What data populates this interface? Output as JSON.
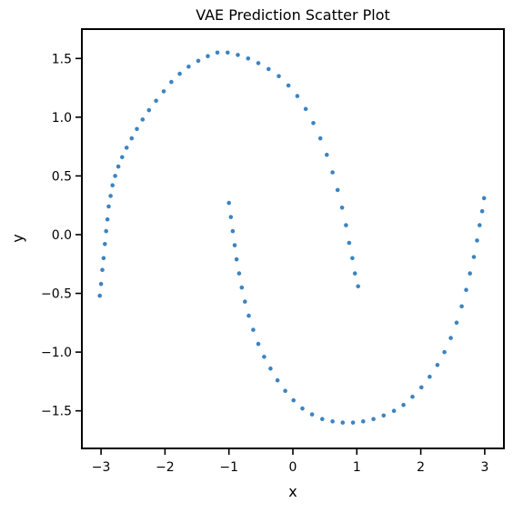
{
  "chart_data": {
    "type": "scatter",
    "title": "VAE Prediction Scatter Plot",
    "xlabel": "x",
    "ylabel": "y",
    "xlim": [
      -3.3,
      3.3
    ],
    "ylim": [
      -1.82,
      1.75
    ],
    "xticks": [
      -3,
      -2,
      -1,
      0,
      1,
      2,
      3
    ],
    "xtick_labels": [
      "−3",
      "−2",
      "−1",
      "0",
      "1",
      "2",
      "3"
    ],
    "yticks": [
      -1.5,
      -1.0,
      -0.5,
      0.0,
      0.5,
      1.0,
      1.5
    ],
    "ytick_labels": [
      "−1.5",
      "−1.0",
      "−0.5",
      "0.0",
      "0.5",
      "1.0",
      "1.5"
    ],
    "grid": false,
    "point_color": "#3b84c0",
    "point_edge_color": "#ffffff",
    "series": [
      {
        "values": [
          [
            -3.02,
            -0.52
          ],
          [
            -3.0,
            -0.42
          ],
          [
            -2.98,
            -0.3
          ],
          [
            -2.96,
            -0.2
          ],
          [
            -2.94,
            -0.08
          ],
          [
            -2.92,
            0.03
          ],
          [
            -2.9,
            0.13
          ],
          [
            -2.88,
            0.24
          ],
          [
            -2.85,
            0.33
          ],
          [
            -2.82,
            0.42
          ],
          [
            -2.78,
            0.5
          ],
          [
            -2.73,
            0.58
          ],
          [
            -2.67,
            0.66
          ],
          [
            -2.6,
            0.74
          ],
          [
            -2.52,
            0.82
          ],
          [
            -2.44,
            0.9
          ],
          [
            -2.35,
            0.98
          ],
          [
            -2.25,
            1.06
          ],
          [
            -2.14,
            1.14
          ],
          [
            -2.02,
            1.22
          ],
          [
            -1.9,
            1.3
          ],
          [
            -1.77,
            1.37
          ],
          [
            -1.63,
            1.43
          ],
          [
            -1.48,
            1.48
          ],
          [
            -1.33,
            1.52
          ],
          [
            -1.18,
            1.55
          ],
          [
            -1.02,
            1.55
          ],
          [
            -0.86,
            1.53
          ],
          [
            -0.7,
            1.5
          ],
          [
            -0.54,
            1.46
          ],
          [
            -0.38,
            1.41
          ],
          [
            -0.22,
            1.35
          ],
          [
            -0.07,
            1.27
          ],
          [
            0.07,
            1.18
          ],
          [
            0.2,
            1.07
          ],
          [
            0.32,
            0.95
          ],
          [
            0.43,
            0.82
          ],
          [
            0.53,
            0.68
          ],
          [
            0.62,
            0.53
          ],
          [
            0.7,
            0.38
          ],
          [
            0.77,
            0.23
          ],
          [
            0.83,
            0.08
          ],
          [
            0.88,
            -0.07
          ],
          [
            0.93,
            -0.2
          ],
          [
            0.97,
            -0.33
          ],
          [
            1.02,
            -0.44
          ],
          [
            -1.0,
            0.27
          ],
          [
            -0.97,
            0.15
          ],
          [
            -0.94,
            0.03
          ],
          [
            -0.91,
            -0.09
          ],
          [
            -0.88,
            -0.21
          ],
          [
            -0.84,
            -0.33
          ],
          [
            -0.8,
            -0.45
          ],
          [
            -0.75,
            -0.57
          ],
          [
            -0.69,
            -0.69
          ],
          [
            -0.62,
            -0.81
          ],
          [
            -0.54,
            -0.93
          ],
          [
            -0.45,
            -1.04
          ],
          [
            -0.35,
            -1.14
          ],
          [
            -0.24,
            -1.24
          ],
          [
            -0.12,
            -1.33
          ],
          [
            0.01,
            -1.41
          ],
          [
            0.15,
            -1.48
          ],
          [
            0.3,
            -1.53
          ],
          [
            0.46,
            -1.57
          ],
          [
            0.62,
            -1.59
          ],
          [
            0.78,
            -1.6
          ],
          [
            0.94,
            -1.6
          ],
          [
            1.1,
            -1.59
          ],
          [
            1.26,
            -1.57
          ],
          [
            1.42,
            -1.54
          ],
          [
            1.58,
            -1.5
          ],
          [
            1.73,
            -1.45
          ],
          [
            1.87,
            -1.38
          ],
          [
            2.01,
            -1.3
          ],
          [
            2.14,
            -1.21
          ],
          [
            2.26,
            -1.11
          ],
          [
            2.37,
            -1.0
          ],
          [
            2.47,
            -0.88
          ],
          [
            2.56,
            -0.75
          ],
          [
            2.64,
            -0.61
          ],
          [
            2.71,
            -0.47
          ],
          [
            2.77,
            -0.33
          ],
          [
            2.83,
            -0.19
          ],
          [
            2.88,
            -0.05
          ],
          [
            2.92,
            0.08
          ],
          [
            2.96,
            0.2
          ],
          [
            2.99,
            0.31
          ]
        ]
      }
    ]
  }
}
